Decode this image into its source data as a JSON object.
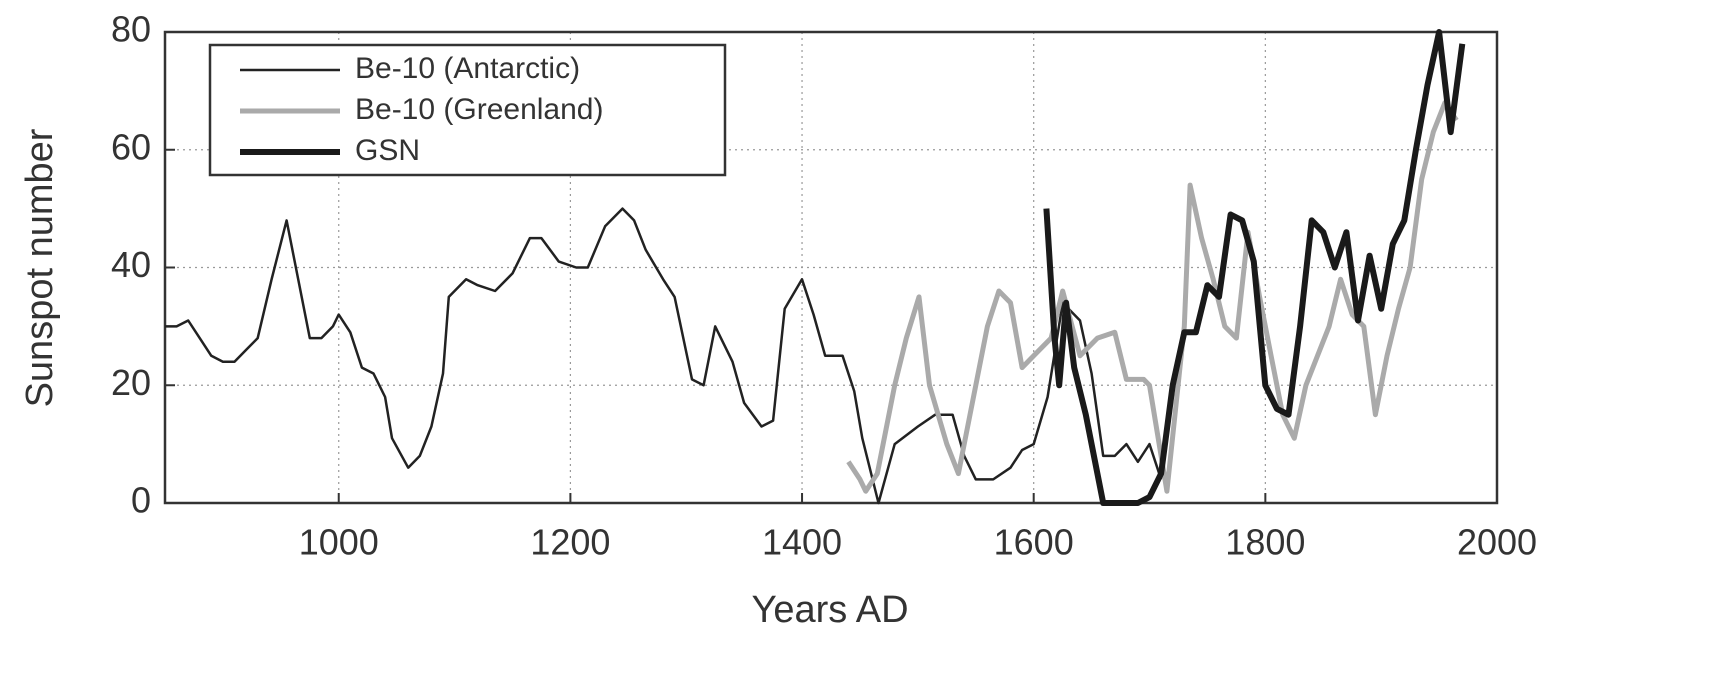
{
  "chart_data": {
    "type": "line",
    "xlabel": "Years AD",
    "ylabel": "Sunspot number",
    "xlim": [
      850,
      2000
    ],
    "ylim": [
      0,
      80
    ],
    "xticks": [
      1000,
      1200,
      1400,
      1600,
      1800,
      2000
    ],
    "yticks": [
      0,
      20,
      40,
      60,
      80
    ],
    "grid": true,
    "legend": "upper left",
    "series": [
      {
        "name": "Be-10 (Antarctic)",
        "color": "#222222",
        "x": [
          850,
          860,
          870,
          880,
          890,
          900,
          910,
          920,
          930,
          942,
          955,
          965,
          975,
          985,
          995,
          1000,
          1010,
          1020,
          1030,
          1040,
          1046,
          1060,
          1070,
          1080,
          1090,
          1095,
          1110,
          1120,
          1135,
          1150,
          1165,
          1175,
          1190,
          1205,
          1215,
          1230,
          1245,
          1255,
          1265,
          1280,
          1290,
          1305,
          1315,
          1325,
          1340,
          1350,
          1365,
          1375,
          1385,
          1400,
          1410,
          1420,
          1435,
          1445,
          1452,
          1466,
          1480,
          1500,
          1515,
          1530,
          1540,
          1550,
          1565,
          1580,
          1590,
          1600,
          1612,
          1625,
          1640,
          1650,
          1660,
          1670,
          1680,
          1690,
          1700,
          1710
        ],
        "values": [
          30,
          30,
          31,
          28,
          25,
          24,
          24,
          26,
          28,
          38,
          48,
          38,
          28,
          28,
          30,
          32,
          29,
          23,
          22,
          18,
          11,
          6,
          8,
          13,
          22,
          35,
          38,
          37,
          36,
          39,
          45,
          45,
          41,
          40,
          40,
          47,
          50,
          48,
          43,
          38,
          35,
          21,
          20,
          30,
          24,
          17,
          13,
          14,
          33,
          38,
          32,
          25,
          25,
          19,
          11,
          0,
          10,
          13,
          15,
          15,
          8,
          4,
          4,
          6,
          9,
          10,
          18,
          34,
          31,
          22,
          8,
          8,
          10,
          7,
          10,
          4
        ]
      },
      {
        "name": "Be-10 (Greenland)",
        "color": "#aaaaaa",
        "x": [
          1440,
          1450,
          1455,
          1465,
          1480,
          1490,
          1501,
          1510,
          1525,
          1535,
          1545,
          1560,
          1570,
          1580,
          1590,
          1600,
          1615,
          1625,
          1640,
          1655,
          1670,
          1680,
          1695,
          1700,
          1715,
          1730,
          1735,
          1745,
          1755,
          1765,
          1775,
          1785,
          1795,
          1805,
          1815,
          1825,
          1835,
          1845,
          1855,
          1865,
          1875,
          1885,
          1895,
          1905,
          1915,
          1925,
          1935,
          1945,
          1955,
          1965
        ],
        "values": [
          7,
          4,
          2,
          5,
          20,
          28,
          35,
          20,
          10,
          5,
          15,
          30,
          36,
          34,
          23,
          25,
          28,
          36,
          25,
          28,
          29,
          21,
          21,
          20,
          2,
          30,
          54,
          45,
          38,
          30,
          28,
          46,
          35,
          25,
          15,
          11,
          20,
          25,
          30,
          38,
          32,
          30,
          15,
          25,
          33,
          40,
          55,
          63,
          68,
          65
        ]
      },
      {
        "name": "GSN",
        "color": "#1a1a1a",
        "x": [
          1611,
          1618,
          1622,
          1628,
          1635,
          1645,
          1660,
          1670,
          1690,
          1700,
          1710,
          1720,
          1730,
          1740,
          1750,
          1760,
          1770,
          1780,
          1790,
          1800,
          1810,
          1820,
          1830,
          1840,
          1850,
          1860,
          1870,
          1880,
          1890,
          1900,
          1910,
          1920,
          1930,
          1940,
          1950,
          1960,
          1970
        ],
        "values": [
          50,
          28,
          20,
          34,
          23,
          15,
          0,
          0,
          0,
          1,
          5,
          20,
          29,
          29,
          37,
          35,
          49,
          48,
          41,
          20,
          16,
          15,
          30,
          48,
          46,
          40,
          46,
          31,
          42,
          33,
          44,
          48,
          60,
          71,
          80,
          63,
          78
        ]
      }
    ]
  }
}
